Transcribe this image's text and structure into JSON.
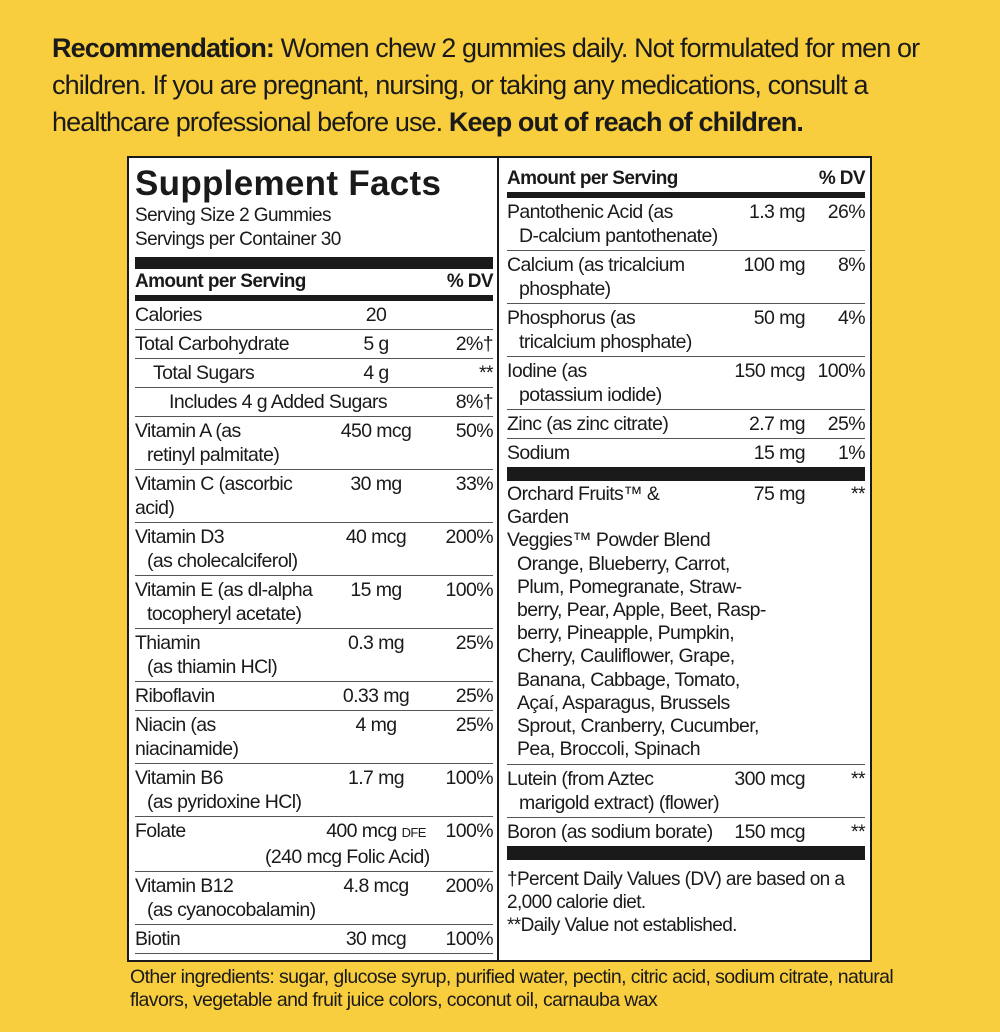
{
  "recommendation": {
    "label": "Recommendation:",
    "text": " Women chew 2 gummies daily. Not formulated for men or children. If you are pregnant, nursing, or taking any medications, consult a healthcare professional before use. ",
    "warning": "Keep out of reach of children."
  },
  "facts": {
    "title": "Supplement Facts",
    "serving_size": "Serving Size 2 Gummies",
    "servings_per_container": "Servings per Container 30",
    "header_amount": "Amount per Serving",
    "header_dv": "% DV",
    "left_rows": [
      {
        "name": "Calories",
        "amount": "20",
        "dv": ""
      },
      {
        "name": "Total Carbohydrate",
        "amount": "5 g",
        "dv": "2%†"
      },
      {
        "name": "Total Sugars",
        "amount": "4 g",
        "dv": "**",
        "indent": 1
      },
      {
        "name": "Includes 4 g Added Sugars",
        "amount": "",
        "dv": "8%†",
        "indent": 2
      },
      {
        "name": "Vitamin A (as",
        "sub": "retinyl palmitate)",
        "amount": "450 mcg",
        "dv": "50%"
      },
      {
        "name": "Vitamin C (ascorbic acid)",
        "amount": "30 mg",
        "dv": "33%"
      },
      {
        "name": "Vitamin D3",
        "sub": "(as cholecalciferol)",
        "amount": "40 mcg",
        "dv": "200%"
      },
      {
        "name": "Vitamin E (as dl-alpha",
        "sub": "tocopheryl acetate)",
        "amount": "15 mg",
        "dv": "100%"
      },
      {
        "name": "Thiamin",
        "sub": "(as thiamin HCl)",
        "amount": "0.3 mg",
        "dv": "25%"
      },
      {
        "name": "Riboflavin",
        "amount": "0.33 mg",
        "dv": "25%"
      },
      {
        "name": "Niacin (as niacinamide)",
        "amount": "4 mg",
        "dv": "25%"
      },
      {
        "name": "Vitamin B6",
        "sub": "(as pyridoxine HCl)",
        "amount": "1.7 mg",
        "dv": "100%"
      },
      {
        "name": "Folate",
        "amount": "400 mcg",
        "unit": "DFE",
        "sub": "(240 mcg Folic Acid)",
        "dv": "100%",
        "subcenter": true
      },
      {
        "name": "Vitamin B12",
        "sub": "(as cyanocobalamin)",
        "amount": "4.8 mcg",
        "dv": "200%"
      },
      {
        "name": "Biotin",
        "amount": "30 mcg",
        "dv": "100%"
      }
    ],
    "right_rows": [
      {
        "name": "Pantothenic Acid (as",
        "sub": "D-calcium pantothenate)",
        "amount": "1.3 mg",
        "dv": "26%"
      },
      {
        "name": "Calcium (as tricalcium",
        "sub": "phosphate)",
        "amount": "100 mg",
        "dv": "8%"
      },
      {
        "name": "Phosphorus (as",
        "sub": "tricalcium phosphate)",
        "amount": "50 mg",
        "dv": "4%"
      },
      {
        "name": "Iodine (as",
        "sub": "potassium iodide)",
        "amount": "150 mcg",
        "dv": "100%"
      },
      {
        "name": "Zinc (as zinc citrate)",
        "amount": "2.7 mg",
        "dv": "25%"
      },
      {
        "name": "Sodium",
        "amount": "15 mg",
        "dv": "1%"
      }
    ],
    "blend": {
      "name_line1": "Orchard Fruits™ & Garden",
      "name_line2": "Veggies™ Powder Blend",
      "amount": "75 mg",
      "dv": "**",
      "ingredients": [
        "Orange, Blueberry, Carrot,",
        "Plum, Pomegranate, Straw-",
        "berry, Pear, Apple, Beet, Rasp-",
        "berry, Pineapple, Pumpkin,",
        "Cherry, Cauliflower, Grape,",
        "Banana, Cabbage, Tomato,",
        "Açaí, Asparagus, Brussels",
        "Sprout, Cranberry, Cucumber,",
        "Pea, Broccoli, Spinach"
      ]
    },
    "right_rows_2": [
      {
        "name": "Lutein (from Aztec",
        "sub": "marigold extract) (flower)",
        "amount": "300 mcg",
        "dv": "**"
      },
      {
        "name": "Boron (as sodium borate)",
        "amount": "150 mcg",
        "dv": "**"
      }
    ],
    "footnote_dv": "†Percent Daily Values (DV) are based on a 2,000 calorie diet.",
    "footnote_na": "**Daily Value not established."
  },
  "other_ingredients": "Other ingredients: sugar, glucose syrup, purified water, pectin, citric acid, sodium citrate, natural flavors, vegetable and fruit juice colors, coconut oil, carnauba wax",
  "colors": {
    "background": "#f8cd3e",
    "panel": "#ffffff",
    "ink": "#1a1a1a"
  }
}
